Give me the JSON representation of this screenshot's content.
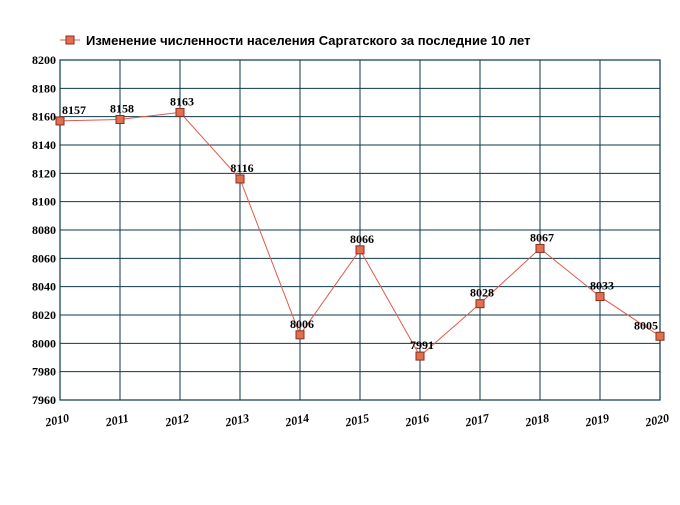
{
  "chart_data": {
    "type": "line",
    "title": "",
    "xlabel": "",
    "ylabel": "",
    "categories": [
      "2010",
      "2011",
      "2012",
      "2013",
      "2014",
      "2015",
      "2016",
      "2017",
      "2018",
      "2019",
      "2020"
    ],
    "series": [
      {
        "name": "Изменение численности населения Саргатского за последние 10 лет",
        "values": [
          8157,
          8158,
          8163,
          8116,
          8006,
          8066,
          7991,
          8028,
          8067,
          8033,
          8005
        ],
        "labels": [
          "8157",
          "8158",
          "8163",
          "8116",
          "8006",
          "8066",
          "7991",
          "8028",
          "8067",
          "8033",
          "8005"
        ]
      }
    ],
    "ylim": [
      7960,
      8200
    ],
    "yticks": [
      "7960",
      "7980",
      "8000",
      "8020",
      "8040",
      "8060",
      "8080",
      "8100",
      "8120",
      "8140",
      "8160",
      "8180",
      "8200"
    ],
    "grid": true,
    "legend": "top",
    "colors": {
      "line": "#e05a4a",
      "marker_fill": "#e07050",
      "marker_stroke": "#8b2e1a",
      "grid": "#0b3a4a"
    }
  }
}
